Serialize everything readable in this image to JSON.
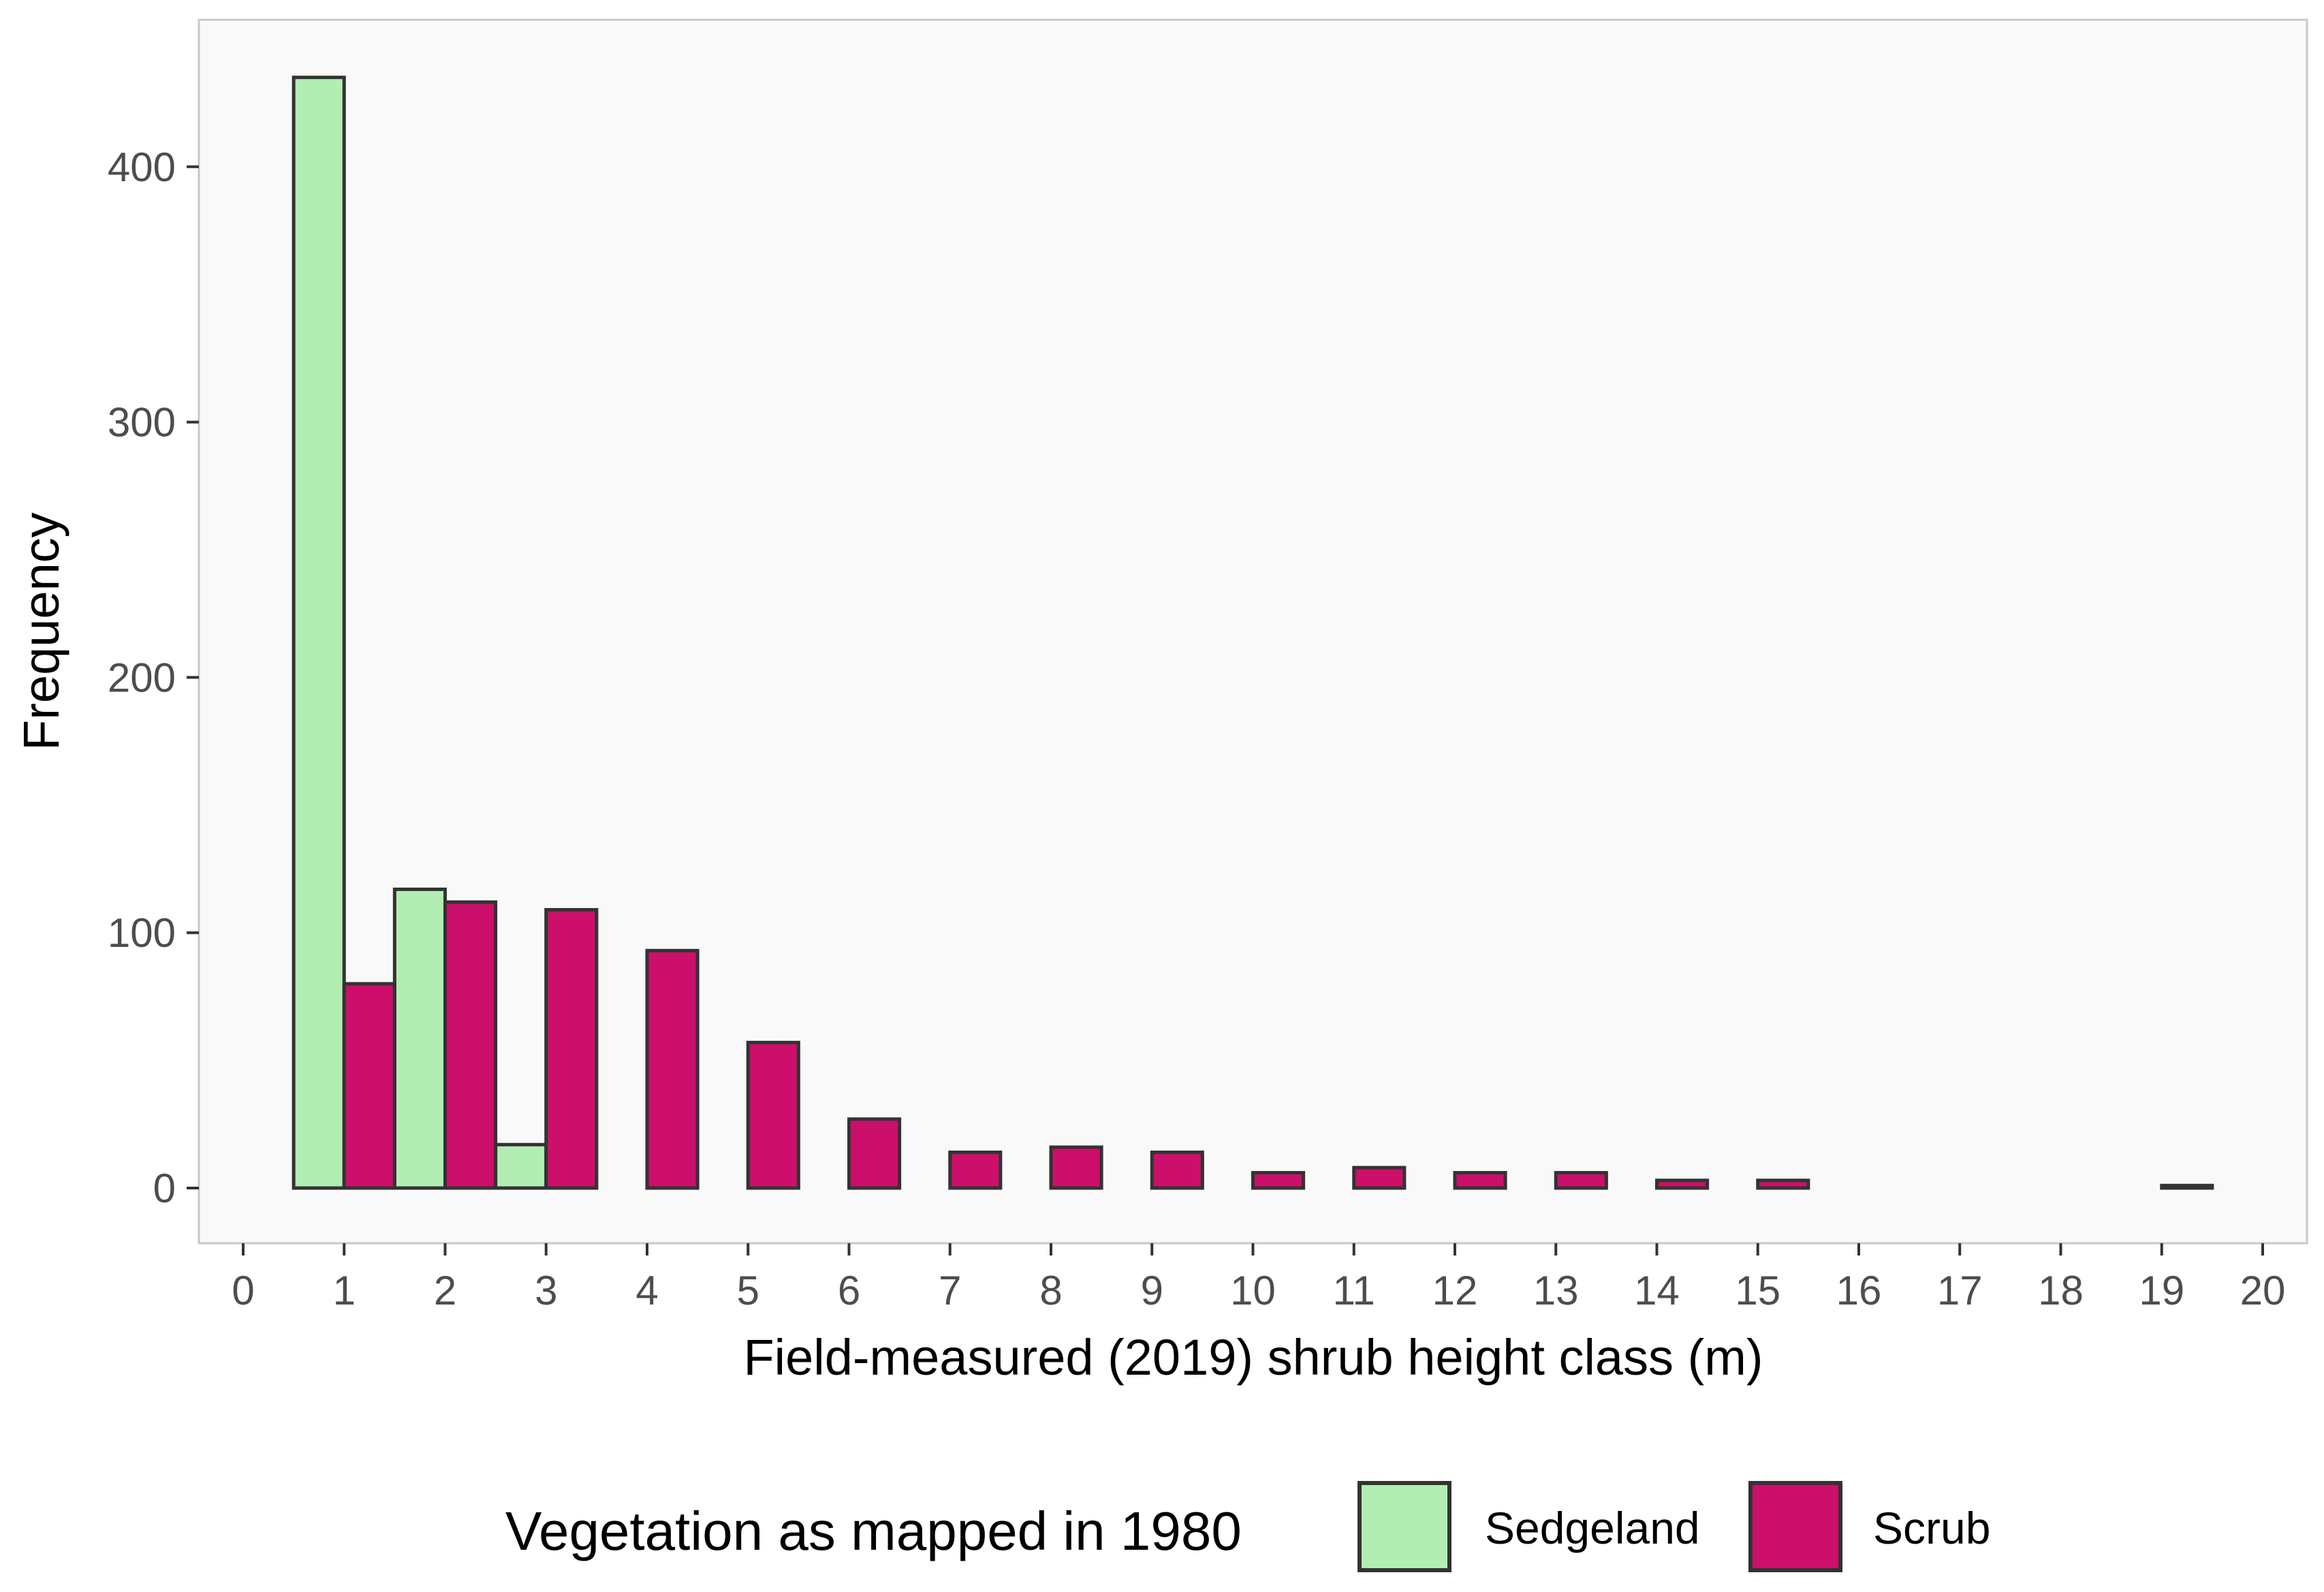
{
  "chart_data": {
    "type": "bar",
    "title": "",
    "xlabel": "Field-measured (2019) shrub height class (m)",
    "ylabel": "Frequency",
    "xlim": [
      0,
      20
    ],
    "ylim": [
      0,
      440
    ],
    "x_ticks": [
      0,
      1,
      2,
      3,
      4,
      5,
      6,
      7,
      8,
      9,
      10,
      11,
      12,
      13,
      14,
      15,
      16,
      17,
      18,
      19,
      20
    ],
    "y_ticks": [
      0,
      100,
      200,
      300,
      400
    ],
    "bin_width": 1,
    "bins_start": [
      0.5,
      1.5,
      2.5,
      3.5,
      4.5,
      5.5,
      6.5,
      7.5,
      8.5,
      9.5,
      10.5,
      11.5,
      12.5,
      13.5,
      14.5,
      15.5,
      16.5,
      17.5,
      18.5
    ],
    "grid": false,
    "legend_position": "bottom",
    "legend_title": "Vegetation as mapped in 1980",
    "series": [
      {
        "name": "Sedgeland",
        "color": "#b2edb3",
        "values": [
          435,
          117,
          17,
          0,
          0,
          0,
          0,
          0,
          0,
          0,
          0,
          0,
          0,
          0,
          0,
          0,
          0,
          0,
          0
        ]
      },
      {
        "name": "Scrub",
        "color": "#cc0f6b",
        "values": [
          80,
          112,
          109,
          93,
          57,
          27,
          14,
          16,
          14,
          6,
          8,
          6,
          6,
          3,
          3,
          0,
          0,
          0,
          1
        ]
      }
    ],
    "colors": {
      "panel": "#f9f9f9",
      "panel_border": "#c8c8c8",
      "bar_outline": "#333333",
      "tick": "#333333"
    }
  }
}
